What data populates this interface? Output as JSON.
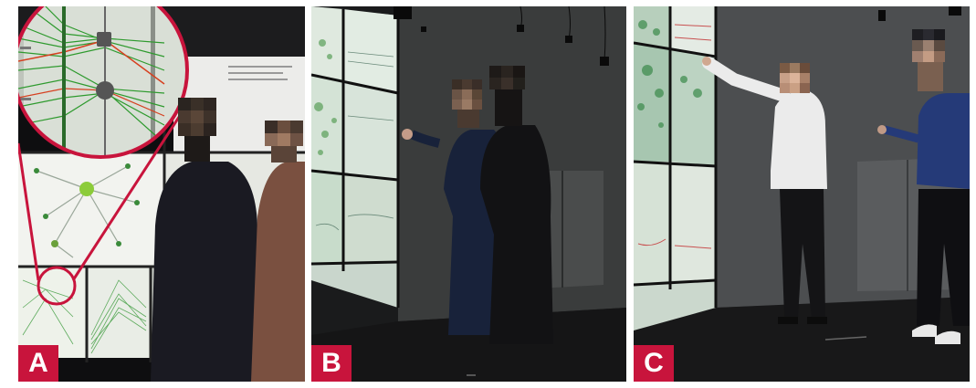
{
  "panels": [
    {
      "id": "A",
      "label": "A"
    },
    {
      "id": "B",
      "label": "B"
    },
    {
      "id": "C",
      "label": "C"
    }
  ],
  "colors": {
    "label_bg": "#c8143c",
    "magnifier_ring": "#c8143c",
    "screen_green": "#3a9a3a",
    "screen_bg": "#d8e6dc"
  }
}
